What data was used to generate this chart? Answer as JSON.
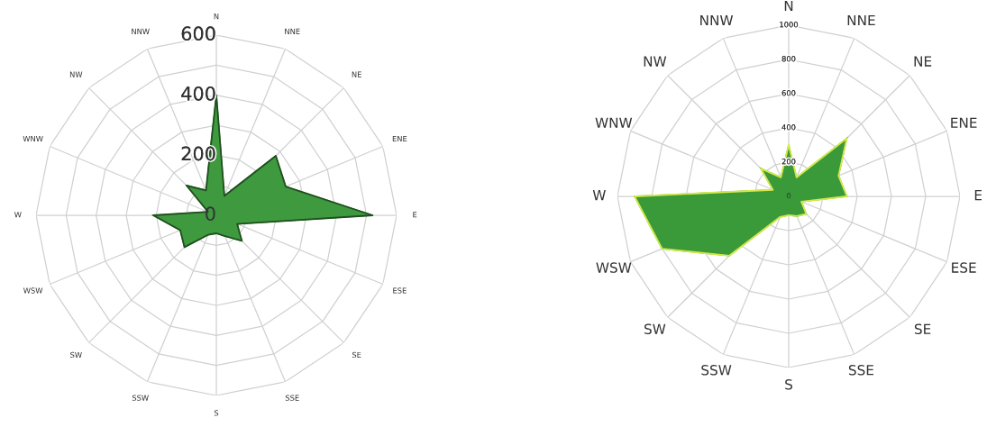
{
  "chart_data": [
    {
      "type": "radar",
      "categories": [
        "N",
        "NNE",
        "NE",
        "ENE",
        "E",
        "ESE",
        "SE",
        "SSE",
        "S",
        "SSW",
        "SW",
        "WSW",
        "W",
        "WNW",
        "NW",
        "NNW"
      ],
      "series": [
        {
          "color": "#3f9a3f",
          "values": [
            400,
            70,
            280,
            250,
            520,
            75,
            120,
            75,
            60,
            70,
            150,
            130,
            210,
            30,
            140,
            90
          ]
        }
      ],
      "ylim": [
        0,
        600
      ],
      "yticks": [
        0,
        200,
        400,
        600
      ],
      "grid": true,
      "marker": "none"
    },
    {
      "type": "radar",
      "categories": [
        "N",
        "NNE",
        "NE",
        "ENE",
        "E",
        "ESE",
        "SE",
        "SSE",
        "S",
        "SSW",
        "SW",
        "WSW",
        "W",
        "WNW",
        "NW",
        "NNW"
      ],
      "series": [
        {
          "color": "#3a9a3a",
          "values": [
            300,
            120,
            480,
            315,
            340,
            80,
            145,
            125,
            110,
            130,
            490,
            800,
            900,
            100,
            230,
            120
          ]
        }
      ],
      "ylim": [
        0,
        1000
      ],
      "yticks": [
        0,
        200,
        400,
        600,
        800,
        1000
      ],
      "grid": true,
      "marker": "none"
    }
  ]
}
